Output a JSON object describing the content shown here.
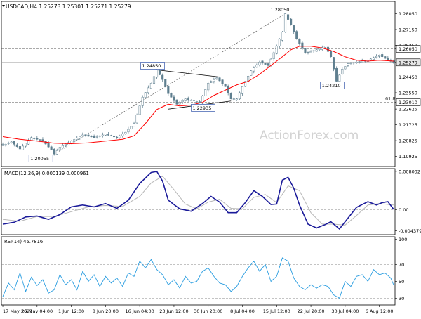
{
  "chart_data": [
    {
      "type": "candlestick",
      "title": "USDCAD,H4  1.25273 1.25301 1.25271 1.25279",
      "symbol": "USDCAD,H4",
      "ohlc_readout": {
        "open": 1.25273,
        "high": 1.25301,
        "low": 1.25271,
        "close": 1.25279
      },
      "watermark": "ActionForex.com",
      "ylim": [
        1.1935,
        1.2875
      ],
      "y_ticks": [
        1.2805,
        1.2715,
        1.2625,
        1.2605,
        1.25279,
        1.2445,
        1.2355,
        1.2301,
        1.22625,
        1.21725,
        1.20825,
        1.19925
      ],
      "y_tick_labels": [
        "1.28050",
        "1.27150",
        "1.26250",
        "1.26050",
        "1.25279",
        "1.24450",
        "1.23550",
        "1.23010",
        "1.22625",
        "1.21725",
        "1.20825",
        "1.19925"
      ],
      "highlighted_levels": [
        {
          "label": "1.26050",
          "value": 1.2605,
          "style": "dashed"
        },
        {
          "label": "1.25279",
          "value": 1.25279,
          "style": "current"
        },
        {
          "label": "1.23010",
          "value": 1.2301,
          "style": "dashed"
        }
      ],
      "annotations": [
        {
          "label": "1.28050",
          "value": 1.2805,
          "bar": 99
        },
        {
          "label": "1.24850",
          "value": 1.2485,
          "bar": 54
        },
        {
          "label": "1.24210",
          "value": 1.2421,
          "bar": 117
        },
        {
          "label": "1.22935",
          "value": 1.22935,
          "bar": 68
        },
        {
          "label": "1.20055",
          "value": 1.20055,
          "bar": 18
        }
      ],
      "fib_label": "61.8",
      "series": [
        {
          "name": "price",
          "anchors": [
            [
              0,
              1.2055
            ],
            [
              3,
              1.2075
            ],
            [
              6,
              1.2035
            ],
            [
              10,
              1.21
            ],
            [
              14,
              1.208
            ],
            [
              17,
              1.203
            ],
            [
              18,
              1.2006
            ],
            [
              20,
              1.2045
            ],
            [
              24,
              1.208
            ],
            [
              28,
              1.2115
            ],
            [
              32,
              1.21
            ],
            [
              36,
              1.212
            ],
            [
              40,
              1.21
            ],
            [
              43,
              1.213
            ],
            [
              46,
              1.218
            ],
            [
              49,
              1.233
            ],
            [
              52,
              1.241
            ],
            [
              54,
              1.2485
            ],
            [
              56,
              1.243
            ],
            [
              58,
              1.235
            ],
            [
              61,
              1.229
            ],
            [
              64,
              1.232
            ],
            [
              67,
              1.231
            ],
            [
              69,
              1.23
            ],
            [
              72,
              1.241
            ],
            [
              75,
              1.244
            ],
            [
              78,
              1.239
            ],
            [
              80,
              1.232
            ],
            [
              82,
              1.232
            ],
            [
              84,
              1.239
            ],
            [
              87,
              1.248
            ],
            [
              90,
              1.253
            ],
            [
              93,
              1.251
            ],
            [
              96,
              1.262
            ],
            [
              98,
              1.27
            ],
            [
              99,
              1.2805
            ],
            [
              101,
              1.274
            ],
            [
              103,
              1.266
            ],
            [
              106,
              1.258
            ],
            [
              110,
              1.26
            ],
            [
              113,
              1.262
            ],
            [
              115,
              1.256
            ],
            [
              117,
              1.2421
            ],
            [
              119,
              1.249
            ],
            [
              121,
              1.252
            ],
            [
              124,
              1.253
            ],
            [
              128,
              1.254
            ],
            [
              132,
              1.257
            ],
            [
              135,
              1.254
            ],
            [
              137,
              1.2528
            ]
          ]
        },
        {
          "name": "ma",
          "anchors": [
            [
              0,
              1.2105
            ],
            [
              6,
              1.209
            ],
            [
              12,
              1.208
            ],
            [
              18,
              1.2068
            ],
            [
              24,
              1.2065
            ],
            [
              30,
              1.207
            ],
            [
              36,
              1.208
            ],
            [
              42,
              1.209
            ],
            [
              46,
              1.211
            ],
            [
              50,
              1.218
            ],
            [
              54,
              1.226
            ],
            [
              58,
              1.229
            ],
            [
              62,
              1.228
            ],
            [
              66,
              1.2285
            ],
            [
              70,
              1.23
            ],
            [
              74,
              1.234
            ],
            [
              78,
              1.237
            ],
            [
              82,
              1.24
            ],
            [
              86,
              1.242
            ],
            [
              90,
              1.246
            ],
            [
              94,
              1.251
            ],
            [
              98,
              1.256
            ],
            [
              101,
              1.26
            ],
            [
              104,
              1.262
            ],
            [
              108,
              1.262
            ],
            [
              112,
              1.261
            ],
            [
              116,
              1.259
            ],
            [
              120,
              1.256
            ],
            [
              124,
              1.254
            ],
            [
              128,
              1.2535
            ],
            [
              132,
              1.254
            ],
            [
              137,
              1.2535
            ]
          ]
        }
      ]
    },
    {
      "type": "line",
      "title": "MACD(12,26,9) 0.000139 0.000961",
      "ylim": [
        -0.0052,
        0.0086
      ],
      "y_ticks": [
        0.008032,
        0.0,
        -0.004379
      ],
      "y_tick_labels": [
        "0.008032",
        "0.00",
        "-0.004379"
      ],
      "series": [
        {
          "name": "macd",
          "anchors": [
            [
              0,
              -0.003
            ],
            [
              4,
              -0.0026
            ],
            [
              8,
              -0.0015
            ],
            [
              12,
              -0.0013
            ],
            [
              16,
              -0.002
            ],
            [
              20,
              -0.001
            ],
            [
              24,
              0.0006
            ],
            [
              28,
              0.001
            ],
            [
              32,
              0.0006
            ],
            [
              36,
              0.0013
            ],
            [
              40,
              0.0003
            ],
            [
              44,
              0.002
            ],
            [
              48,
              0.0055
            ],
            [
              52,
              0.0078
            ],
            [
              54,
              0.008
            ],
            [
              56,
              0.006
            ],
            [
              58,
              0.002
            ],
            [
              62,
              0.0002
            ],
            [
              66,
              -0.0003
            ],
            [
              70,
              0.0013
            ],
            [
              73,
              0.0028
            ],
            [
              76,
              0.0016
            ],
            [
              79,
              -0.0006
            ],
            [
              82,
              -0.0006
            ],
            [
              85,
              0.0015
            ],
            [
              88,
              0.004
            ],
            [
              91,
              0.0028
            ],
            [
              94,
              0.0011
            ],
            [
              96,
              0.0012
            ],
            [
              98,
              0.0062
            ],
            [
              100,
              0.0068
            ],
            [
              102,
              0.0045
            ],
            [
              104,
              0.001
            ],
            [
              107,
              -0.003
            ],
            [
              110,
              -0.0038
            ],
            [
              113,
              -0.0031
            ],
            [
              115,
              -0.0025
            ],
            [
              118,
              -0.004
            ],
            [
              120,
              -0.0025
            ],
            [
              124,
              0.0005
            ],
            [
              128,
              0.0017
            ],
            [
              131,
              0.001
            ],
            [
              133,
              0.0015
            ],
            [
              135,
              0.0017
            ],
            [
              137,
              0.0001
            ]
          ]
        },
        {
          "name": "signal",
          "anchors": [
            [
              0,
              -0.002
            ],
            [
              6,
              -0.0024
            ],
            [
              12,
              -0.0014
            ],
            [
              18,
              -0.0014
            ],
            [
              24,
              -0.0004
            ],
            [
              30,
              0.0006
            ],
            [
              36,
              0.0009
            ],
            [
              42,
              0.0007
            ],
            [
              48,
              0.0028
            ],
            [
              52,
              0.0056
            ],
            [
              56,
              0.007
            ],
            [
              60,
              0.0042
            ],
            [
              64,
              0.0012
            ],
            [
              68,
              0.0002
            ],
            [
              72,
              0.0016
            ],
            [
              76,
              0.0022
            ],
            [
              80,
              0.0003
            ],
            [
              84,
              0.0002
            ],
            [
              88,
              0.0026
            ],
            [
              92,
              0.0032
            ],
            [
              96,
              0.0015
            ],
            [
              100,
              0.005
            ],
            [
              104,
              0.004
            ],
            [
              108,
              -0.0006
            ],
            [
              112,
              -0.003
            ],
            [
              116,
              -0.003
            ],
            [
              120,
              -0.0032
            ],
            [
              124,
              -0.0012
            ],
            [
              128,
              0.001
            ],
            [
              132,
              0.0013
            ],
            [
              137,
              0.001
            ]
          ]
        }
      ]
    },
    {
      "type": "line",
      "title": "RSI(14) 45.7816",
      "ylim": [
        22,
        103
      ],
      "y_ticks": [
        100,
        70,
        50,
        30
      ],
      "y_tick_labels": [
        "100",
        "70",
        "50",
        "30"
      ],
      "levels": [
        70,
        30
      ],
      "series": [
        {
          "name": "rsi",
          "anchors": [
            [
              0,
              32
            ],
            [
              2,
              48
            ],
            [
              4,
              40
            ],
            [
              6,
              60
            ],
            [
              8,
              38
            ],
            [
              10,
              55
            ],
            [
              12,
              45
            ],
            [
              14,
              52
            ],
            [
              16,
              36
            ],
            [
              18,
              40
            ],
            [
              20,
              58
            ],
            [
              22,
              46
            ],
            [
              24,
              52
            ],
            [
              26,
              40
            ],
            [
              28,
              62
            ],
            [
              30,
              50
            ],
            [
              32,
              58
            ],
            [
              34,
              44
            ],
            [
              36,
              56
            ],
            [
              38,
              48
            ],
            [
              40,
              54
            ],
            [
              42,
              44
            ],
            [
              44,
              60
            ],
            [
              46,
              56
            ],
            [
              48,
              74
            ],
            [
              50,
              66
            ],
            [
              52,
              76
            ],
            [
              54,
              64
            ],
            [
              56,
              58
            ],
            [
              58,
              46
            ],
            [
              60,
              52
            ],
            [
              62,
              42
            ],
            [
              64,
              56
            ],
            [
              66,
              48
            ],
            [
              68,
              50
            ],
            [
              70,
              62
            ],
            [
              72,
              66
            ],
            [
              74,
              56
            ],
            [
              76,
              48
            ],
            [
              78,
              46
            ],
            [
              80,
              38
            ],
            [
              82,
              44
            ],
            [
              84,
              56
            ],
            [
              86,
              66
            ],
            [
              88,
              74
            ],
            [
              90,
              62
            ],
            [
              92,
              70
            ],
            [
              94,
              50
            ],
            [
              96,
              56
            ],
            [
              98,
              78
            ],
            [
              100,
              74
            ],
            [
              102,
              54
            ],
            [
              104,
              44
            ],
            [
              106,
              40
            ],
            [
              108,
              46
            ],
            [
              110,
              42
            ],
            [
              112,
              46
            ],
            [
              114,
              44
            ],
            [
              116,
              34
            ],
            [
              118,
              30
            ],
            [
              120,
              50
            ],
            [
              122,
              44
            ],
            [
              124,
              56
            ],
            [
              126,
              58
            ],
            [
              128,
              50
            ],
            [
              130,
              64
            ],
            [
              132,
              58
            ],
            [
              134,
              60
            ],
            [
              136,
              54
            ],
            [
              137,
              46
            ]
          ]
        }
      ]
    }
  ],
  "x_axis": {
    "tick_labels": [
      "17 May 2021",
      "25 May 04:00",
      "1 Jun 12:00",
      "8 Jun 20:00",
      "16 Jun 04:00",
      "23 Jun 12:00",
      "30 Jun 20:00",
      "8 Jul 04:00",
      "15 Jul 12:00",
      "22 Jul 20:00",
      "30 Jul 04:00",
      "6 Aug 12:00"
    ]
  },
  "colors": {
    "candle": "#5f7f8f",
    "ma": "#ff0000",
    "macd": "#1a1a99",
    "signal": "#b8b8b8",
    "rsi": "#2a9de0",
    "grid": "#7f7f7f",
    "watermark": "#d2d2d2",
    "label_border": "#3355aa",
    "current_price_bg": "#e6e6e6"
  }
}
